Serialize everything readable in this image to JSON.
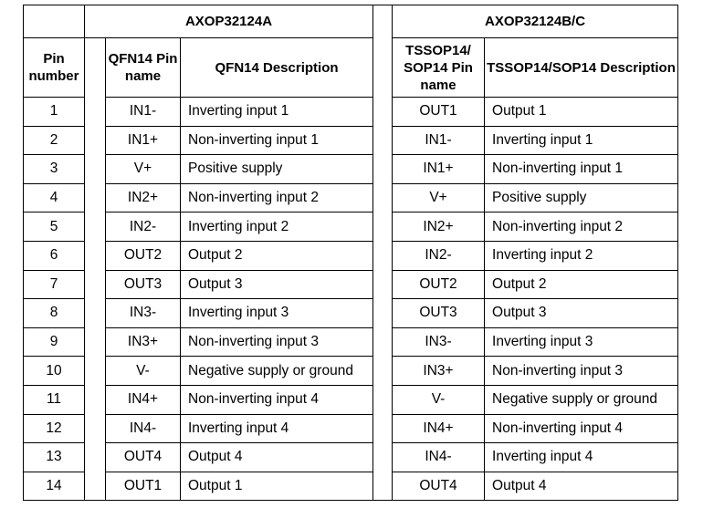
{
  "header": {
    "group_a": "AXOP32124A",
    "group_bc": "AXOP32124B/C",
    "pin_number": "Pin number",
    "qfn_pin_name": "QFN14 Pin name",
    "qfn_description": "QFN14 Description",
    "tssop_pin_name": "TSSOP14/ SOP14 Pin name",
    "tssop_description": "TSSOP14/SOP14 Description"
  },
  "rows": [
    {
      "pin": "1",
      "qfn_name": "IN1-",
      "qfn_desc": "Inverting input 1",
      "tssop_name": "OUT1",
      "tssop_desc": "Output 1"
    },
    {
      "pin": "2",
      "qfn_name": "IN1+",
      "qfn_desc": "Non-inverting input 1",
      "tssop_name": "IN1-",
      "tssop_desc": "Inverting input 1"
    },
    {
      "pin": "3",
      "qfn_name": "V+",
      "qfn_desc": "Positive supply",
      "tssop_name": "IN1+",
      "tssop_desc": "Non-inverting input 1"
    },
    {
      "pin": "4",
      "qfn_name": "IN2+",
      "qfn_desc": "Non-inverting input 2",
      "tssop_name": "V+",
      "tssop_desc": "Positive supply"
    },
    {
      "pin": "5",
      "qfn_name": "IN2-",
      "qfn_desc": "Inverting input 2",
      "tssop_name": "IN2+",
      "tssop_desc": "Non-inverting input 2"
    },
    {
      "pin": "6",
      "qfn_name": "OUT2",
      "qfn_desc": "Output 2",
      "tssop_name": "IN2-",
      "tssop_desc": "Inverting input 2"
    },
    {
      "pin": "7",
      "qfn_name": "OUT3",
      "qfn_desc": "Output 3",
      "tssop_name": "OUT2",
      "tssop_desc": "Output 2"
    },
    {
      "pin": "8",
      "qfn_name": "IN3-",
      "qfn_desc": "Inverting input 3",
      "tssop_name": "OUT3",
      "tssop_desc": "Output 3"
    },
    {
      "pin": "9",
      "qfn_name": "IN3+",
      "qfn_desc": "Non-inverting input 3",
      "tssop_name": "IN3-",
      "tssop_desc": "Inverting input 3"
    },
    {
      "pin": "10",
      "qfn_name": "V-",
      "qfn_desc": "Negative supply or ground",
      "tssop_name": "IN3+",
      "tssop_desc": "Non-inverting input 3"
    },
    {
      "pin": "11",
      "qfn_name": "IN4+",
      "qfn_desc": "Non-inverting input 4",
      "tssop_name": "V-",
      "tssop_desc": "Negative supply or ground"
    },
    {
      "pin": "12",
      "qfn_name": "IN4-",
      "qfn_desc": "Inverting input 4",
      "tssop_name": "IN4+",
      "tssop_desc": "Non-inverting input 4"
    },
    {
      "pin": "13",
      "qfn_name": "OUT4",
      "qfn_desc": "Output 4",
      "tssop_name": "IN4-",
      "tssop_desc": "Inverting input 4"
    },
    {
      "pin": "14",
      "qfn_name": "OUT1",
      "qfn_desc": "Output 1",
      "tssop_name": "OUT4",
      "tssop_desc": "Output 4"
    }
  ]
}
